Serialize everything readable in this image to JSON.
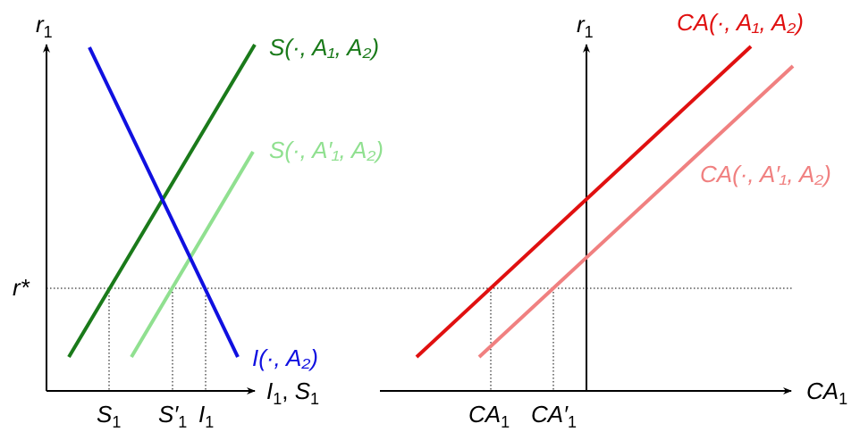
{
  "left_panel": {
    "y_axis_label": {
      "main": "r",
      "sub": "1"
    },
    "x_axis_label": {
      "main": "I",
      "sub1": "1",
      "sep": ", ",
      "main2": "S",
      "sub2": "1"
    },
    "r_star_label": "r*",
    "curves": {
      "saving": {
        "label": "S(·, A₁, A₂)",
        "color": "#1a7a1a"
      },
      "saving_shifted": {
        "label": "S(·, A′₁, A₂)",
        "color": "#90e090"
      },
      "investment": {
        "label": "I(·, A₂)",
        "color": "#1010e0"
      }
    },
    "tick_labels": {
      "s1": {
        "main": "S",
        "sub": "1"
      },
      "s1_prime": {
        "main": "S′",
        "sub": "1"
      },
      "i1": {
        "main": "I",
        "sub": "1"
      }
    }
  },
  "right_panel": {
    "y_axis_label": {
      "main": "r",
      "sub": "1"
    },
    "x_axis_label": {
      "main": "CA",
      "sub": "1"
    },
    "curves": {
      "ca": {
        "label": "CA(·, A₁, A₂)",
        "color": "#e01010"
      },
      "ca_shifted": {
        "label": "CA(·, A′₁, A₂)",
        "color": "#f08080"
      }
    },
    "tick_labels": {
      "ca1": {
        "main": "CA",
        "sub": "1"
      },
      "ca1_prime": {
        "main": "CA′",
        "sub": "1"
      }
    }
  }
}
